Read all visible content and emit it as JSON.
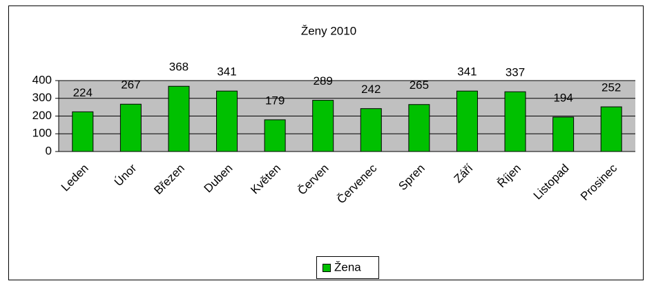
{
  "chart_data": {
    "type": "bar",
    "title": "Ženy 2010",
    "categories": [
      "Leden",
      "Únor",
      "Březen",
      "Duben",
      "Květen",
      "Červen",
      "Červenec",
      "Spren",
      "Září",
      "Říjen",
      "Listopad",
      "Prosinec"
    ],
    "series": [
      {
        "name": "Žena",
        "color": "#00c000",
        "values": [
          224,
          267,
          368,
          341,
          179,
          289,
          242,
          265,
          341,
          337,
          194,
          252
        ]
      }
    ],
    "ylim": [
      0,
      400
    ],
    "yticks": [
      0,
      100,
      200,
      300,
      400
    ],
    "grid": true,
    "legend": "bottom"
  }
}
